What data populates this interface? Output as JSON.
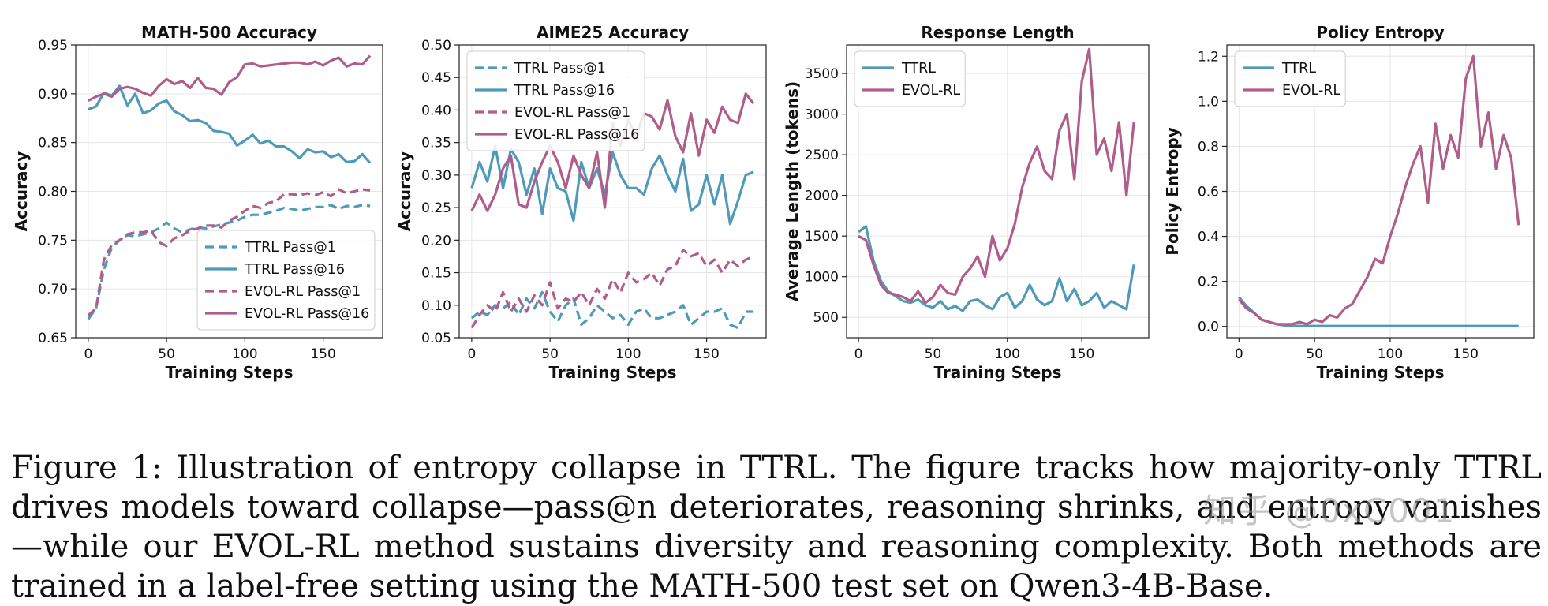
{
  "chart_data": [
    {
      "type": "line",
      "title": "MATH-500 Accuracy",
      "xlabel": "Training Steps",
      "ylabel": "Accuracy",
      "xlim": [
        -8,
        188
      ],
      "ylim": [
        0.65,
        0.95
      ],
      "xticks": [
        0,
        50,
        100,
        150
      ],
      "yticks": [
        0.65,
        0.7,
        0.75,
        0.8,
        0.85,
        0.9,
        0.95
      ],
      "ytick_decimals": 2,
      "grid": true,
      "legend_position": "lower-right",
      "series": [
        {
          "name": "TTRL Pass@1",
          "color": "#4f9ab8",
          "dash": true,
          "x": [
            0,
            5,
            10,
            15,
            20,
            25,
            30,
            35,
            40,
            45,
            50,
            55,
            60,
            65,
            70,
            75,
            80,
            85,
            90,
            95,
            100,
            105,
            110,
            115,
            120,
            125,
            130,
            135,
            140,
            145,
            150,
            155,
            160,
            165,
            170,
            175,
            180
          ],
          "y": [
            0.669,
            0.68,
            0.72,
            0.742,
            0.75,
            0.755,
            0.754,
            0.756,
            0.758,
            0.762,
            0.768,
            0.762,
            0.758,
            0.761,
            0.763,
            0.762,
            0.764,
            0.766,
            0.768,
            0.77,
            0.774,
            0.776,
            0.776,
            0.778,
            0.78,
            0.783,
            0.782,
            0.78,
            0.782,
            0.784,
            0.784,
            0.786,
            0.782,
            0.785,
            0.784,
            0.786,
            0.785
          ]
        },
        {
          "name": "TTRL Pass@16",
          "color": "#4f9ab8",
          "dash": false,
          "x": [
            0,
            5,
            10,
            15,
            20,
            25,
            30,
            35,
            40,
            45,
            50,
            55,
            60,
            65,
            70,
            75,
            80,
            85,
            90,
            95,
            100,
            105,
            110,
            115,
            120,
            125,
            130,
            135,
            140,
            145,
            150,
            155,
            160,
            165,
            170,
            175,
            180
          ],
          "y": [
            0.884,
            0.887,
            0.901,
            0.898,
            0.908,
            0.888,
            0.9,
            0.88,
            0.883,
            0.89,
            0.893,
            0.882,
            0.878,
            0.872,
            0.873,
            0.87,
            0.862,
            0.861,
            0.859,
            0.847,
            0.852,
            0.858,
            0.849,
            0.852,
            0.846,
            0.846,
            0.841,
            0.834,
            0.843,
            0.84,
            0.841,
            0.835,
            0.838,
            0.83,
            0.831,
            0.838,
            0.829
          ]
        },
        {
          "name": "EVOL-RL Pass@1",
          "color": "#b05d8a",
          "dash": true,
          "x": [
            0,
            5,
            10,
            15,
            20,
            25,
            30,
            35,
            40,
            45,
            50,
            55,
            60,
            65,
            70,
            75,
            80,
            85,
            90,
            95,
            100,
            105,
            110,
            115,
            120,
            125,
            130,
            135,
            140,
            145,
            150,
            155,
            160,
            165,
            170,
            175,
            180
          ],
          "y": [
            0.673,
            0.68,
            0.73,
            0.745,
            0.75,
            0.756,
            0.758,
            0.758,
            0.76,
            0.748,
            0.744,
            0.752,
            0.755,
            0.76,
            0.762,
            0.765,
            0.765,
            0.763,
            0.77,
            0.774,
            0.78,
            0.785,
            0.783,
            0.788,
            0.79,
            0.797,
            0.797,
            0.796,
            0.798,
            0.796,
            0.799,
            0.795,
            0.802,
            0.798,
            0.8,
            0.802,
            0.801
          ]
        },
        {
          "name": "EVOL-RL Pass@16",
          "color": "#b05d8a",
          "dash": false,
          "x": [
            0,
            5,
            10,
            15,
            20,
            25,
            30,
            35,
            40,
            45,
            50,
            55,
            60,
            65,
            70,
            75,
            80,
            85,
            90,
            95,
            100,
            105,
            110,
            115,
            120,
            125,
            130,
            135,
            140,
            145,
            150,
            155,
            160,
            165,
            170,
            175,
            180
          ],
          "y": [
            0.893,
            0.897,
            0.9,
            0.897,
            0.905,
            0.907,
            0.905,
            0.901,
            0.898,
            0.908,
            0.915,
            0.91,
            0.913,
            0.906,
            0.916,
            0.906,
            0.905,
            0.899,
            0.912,
            0.917,
            0.93,
            0.931,
            0.928,
            0.929,
            0.93,
            0.931,
            0.932,
            0.932,
            0.93,
            0.933,
            0.929,
            0.934,
            0.937,
            0.928,
            0.931,
            0.93,
            0.939
          ]
        }
      ]
    },
    {
      "type": "line",
      "title": "AIME25 Accuracy",
      "xlabel": "Training Steps",
      "ylabel": "Accuracy",
      "xlim": [
        -8,
        188
      ],
      "ylim": [
        0.05,
        0.5
      ],
      "xticks": [
        0,
        50,
        100,
        150
      ],
      "yticks": [
        0.05,
        0.1,
        0.15,
        0.2,
        0.25,
        0.3,
        0.35,
        0.4,
        0.45,
        0.5
      ],
      "ytick_decimals": 2,
      "grid": true,
      "legend_position": "upper-left",
      "series": [
        {
          "name": "TTRL Pass@1",
          "color": "#4f9ab8",
          "dash": true,
          "x": [
            0,
            5,
            10,
            15,
            20,
            25,
            30,
            35,
            40,
            45,
            50,
            55,
            60,
            65,
            70,
            75,
            80,
            85,
            90,
            95,
            100,
            105,
            110,
            115,
            120,
            125,
            130,
            135,
            140,
            145,
            150,
            155,
            160,
            165,
            170,
            175,
            180
          ],
          "y": [
            0.08,
            0.09,
            0.085,
            0.1,
            0.095,
            0.105,
            0.085,
            0.11,
            0.095,
            0.12,
            0.09,
            0.075,
            0.1,
            0.11,
            0.07,
            0.08,
            0.1,
            0.09,
            0.08,
            0.085,
            0.07,
            0.09,
            0.095,
            0.08,
            0.08,
            0.085,
            0.09,
            0.1,
            0.07,
            0.08,
            0.09,
            0.09,
            0.095,
            0.07,
            0.065,
            0.09,
            0.09
          ]
        },
        {
          "name": "TTRL Pass@16",
          "color": "#4f9ab8",
          "dash": false,
          "x": [
            0,
            5,
            10,
            15,
            20,
            25,
            30,
            35,
            40,
            45,
            50,
            55,
            60,
            65,
            70,
            75,
            80,
            85,
            90,
            95,
            100,
            105,
            110,
            115,
            120,
            125,
            130,
            135,
            140,
            145,
            150,
            155,
            160,
            165,
            170,
            175,
            180
          ],
          "y": [
            0.28,
            0.32,
            0.29,
            0.345,
            0.28,
            0.34,
            0.32,
            0.27,
            0.31,
            0.24,
            0.31,
            0.28,
            0.275,
            0.23,
            0.32,
            0.28,
            0.31,
            0.27,
            0.335,
            0.3,
            0.28,
            0.28,
            0.27,
            0.31,
            0.33,
            0.3,
            0.275,
            0.325,
            0.245,
            0.255,
            0.3,
            0.255,
            0.3,
            0.225,
            0.26,
            0.3,
            0.305
          ]
        },
        {
          "name": "EVOL-RL Pass@1",
          "color": "#b05d8a",
          "dash": true,
          "x": [
            0,
            5,
            10,
            15,
            20,
            25,
            30,
            35,
            40,
            45,
            50,
            55,
            60,
            65,
            70,
            75,
            80,
            85,
            90,
            95,
            100,
            105,
            110,
            115,
            120,
            125,
            130,
            135,
            140,
            145,
            150,
            155,
            160,
            165,
            170,
            175,
            180
          ],
          "y": [
            0.065,
            0.085,
            0.1,
            0.09,
            0.12,
            0.09,
            0.11,
            0.09,
            0.115,
            0.1,
            0.135,
            0.095,
            0.11,
            0.105,
            0.12,
            0.1,
            0.125,
            0.11,
            0.14,
            0.12,
            0.15,
            0.135,
            0.14,
            0.15,
            0.13,
            0.155,
            0.16,
            0.185,
            0.175,
            0.18,
            0.16,
            0.17,
            0.15,
            0.17,
            0.16,
            0.17,
            0.175
          ]
        },
        {
          "name": "EVOL-RL Pass@16",
          "color": "#b05d8a",
          "dash": false,
          "x": [
            0,
            5,
            10,
            15,
            20,
            25,
            30,
            35,
            40,
            45,
            50,
            55,
            60,
            65,
            70,
            75,
            80,
            85,
            90,
            95,
            100,
            105,
            110,
            115,
            120,
            125,
            130,
            135,
            140,
            145,
            150,
            155,
            160,
            165,
            170,
            175,
            180
          ],
          "y": [
            0.245,
            0.27,
            0.245,
            0.27,
            0.31,
            0.33,
            0.255,
            0.25,
            0.29,
            0.32,
            0.345,
            0.32,
            0.28,
            0.33,
            0.3,
            0.28,
            0.335,
            0.25,
            0.38,
            0.345,
            0.385,
            0.36,
            0.395,
            0.39,
            0.37,
            0.415,
            0.36,
            0.335,
            0.395,
            0.33,
            0.385,
            0.365,
            0.405,
            0.385,
            0.38,
            0.425,
            0.41
          ]
        }
      ]
    },
    {
      "type": "line",
      "title": "Response Length",
      "xlabel": "Training Steps",
      "ylabel": "Average Length (tokens)",
      "xlim": [
        -8,
        195
      ],
      "ylim": [
        250,
        3850
      ],
      "xticks": [
        0,
        50,
        100,
        150
      ],
      "yticks": [
        500,
        1000,
        1500,
        2000,
        2500,
        3000,
        3500
      ],
      "ytick_decimals": 0,
      "grid": true,
      "legend_position": "upper-left",
      "series": [
        {
          "name": "TTRL",
          "color": "#4f9ab8",
          "dash": false,
          "x": [
            0,
            5,
            10,
            15,
            20,
            25,
            30,
            35,
            40,
            45,
            50,
            55,
            60,
            65,
            70,
            75,
            80,
            85,
            90,
            95,
            100,
            105,
            110,
            115,
            120,
            125,
            130,
            135,
            140,
            145,
            150,
            155,
            160,
            165,
            170,
            175,
            180,
            185
          ],
          "y": [
            1550,
            1620,
            1200,
            950,
            820,
            760,
            700,
            680,
            720,
            650,
            620,
            700,
            600,
            640,
            580,
            700,
            720,
            650,
            600,
            750,
            800,
            620,
            700,
            900,
            720,
            650,
            700,
            980,
            700,
            850,
            650,
            700,
            800,
            620,
            700,
            650,
            600,
            1150
          ]
        },
        {
          "name": "EVOL-RL",
          "color": "#b05d8a",
          "dash": false,
          "x": [
            0,
            5,
            10,
            15,
            20,
            25,
            30,
            35,
            40,
            45,
            50,
            55,
            60,
            65,
            70,
            75,
            80,
            85,
            90,
            95,
            100,
            105,
            110,
            115,
            120,
            125,
            130,
            135,
            140,
            145,
            150,
            155,
            160,
            165,
            170,
            175,
            180,
            185
          ],
          "y": [
            1500,
            1450,
            1150,
            900,
            800,
            780,
            750,
            700,
            820,
            680,
            750,
            900,
            800,
            780,
            1000,
            1100,
            1250,
            1000,
            1500,
            1200,
            1350,
            1650,
            2100,
            2400,
            2600,
            2300,
            2200,
            2800,
            3000,
            2200,
            3400,
            3800,
            2500,
            2700,
            2300,
            2900,
            2000,
            2900
          ]
        }
      ]
    },
    {
      "type": "line",
      "title": "Policy Entropy",
      "xlabel": "Training Steps",
      "ylabel": "Policy Entropy",
      "xlim": [
        -8,
        195
      ],
      "ylim": [
        -0.05,
        1.25
      ],
      "xticks": [
        0,
        50,
        100,
        150
      ],
      "yticks": [
        0.0,
        0.2,
        0.4,
        0.6,
        0.8,
        1.0,
        1.2
      ],
      "ytick_decimals": 1,
      "grid": true,
      "legend_position": "upper-left",
      "series": [
        {
          "name": "TTRL",
          "color": "#4f9ab8",
          "dash": false,
          "x": [
            0,
            5,
            10,
            15,
            20,
            25,
            30,
            35,
            40,
            45,
            50,
            60,
            70,
            80,
            90,
            100,
            110,
            120,
            130,
            140,
            150,
            160,
            170,
            180,
            185
          ],
          "y": [
            0.13,
            0.09,
            0.06,
            0.03,
            0.02,
            0.01,
            0.005,
            0.003,
            0.002,
            0.002,
            0.002,
            0.002,
            0.002,
            0.002,
            0.002,
            0.002,
            0.002,
            0.002,
            0.002,
            0.002,
            0.002,
            0.002,
            0.002,
            0.002,
            0.002
          ]
        },
        {
          "name": "EVOL-RL",
          "color": "#b05d8a",
          "dash": false,
          "x": [
            0,
            5,
            10,
            15,
            20,
            25,
            30,
            35,
            40,
            45,
            50,
            55,
            60,
            65,
            70,
            75,
            80,
            85,
            90,
            95,
            100,
            105,
            110,
            115,
            120,
            125,
            130,
            135,
            140,
            145,
            150,
            155,
            160,
            165,
            170,
            175,
            180,
            185
          ],
          "y": [
            0.12,
            0.08,
            0.06,
            0.03,
            0.02,
            0.01,
            0.01,
            0.01,
            0.02,
            0.01,
            0.03,
            0.02,
            0.05,
            0.04,
            0.08,
            0.1,
            0.16,
            0.22,
            0.3,
            0.28,
            0.4,
            0.5,
            0.62,
            0.72,
            0.8,
            0.55,
            0.9,
            0.7,
            0.85,
            0.75,
            1.1,
            1.2,
            0.8,
            0.95,
            0.7,
            0.85,
            0.75,
            0.45
          ]
        }
      ]
    }
  ],
  "caption": {
    "text": "Figure 1: Illustration of entropy collapse in TTRL. The figure tracks how majority-only TTRL drives models toward collapse—pass@n deteriorates, reasoning shrinks, and entropy vanishes—while our EVOL-RL method sustains diversity and reasoning complexity. Both methods are trained in a label-free setting using the MATH-500 test set on Qwen3-4B-Base."
  },
  "watermark": {
    "text": "知乎 @0xC001"
  }
}
